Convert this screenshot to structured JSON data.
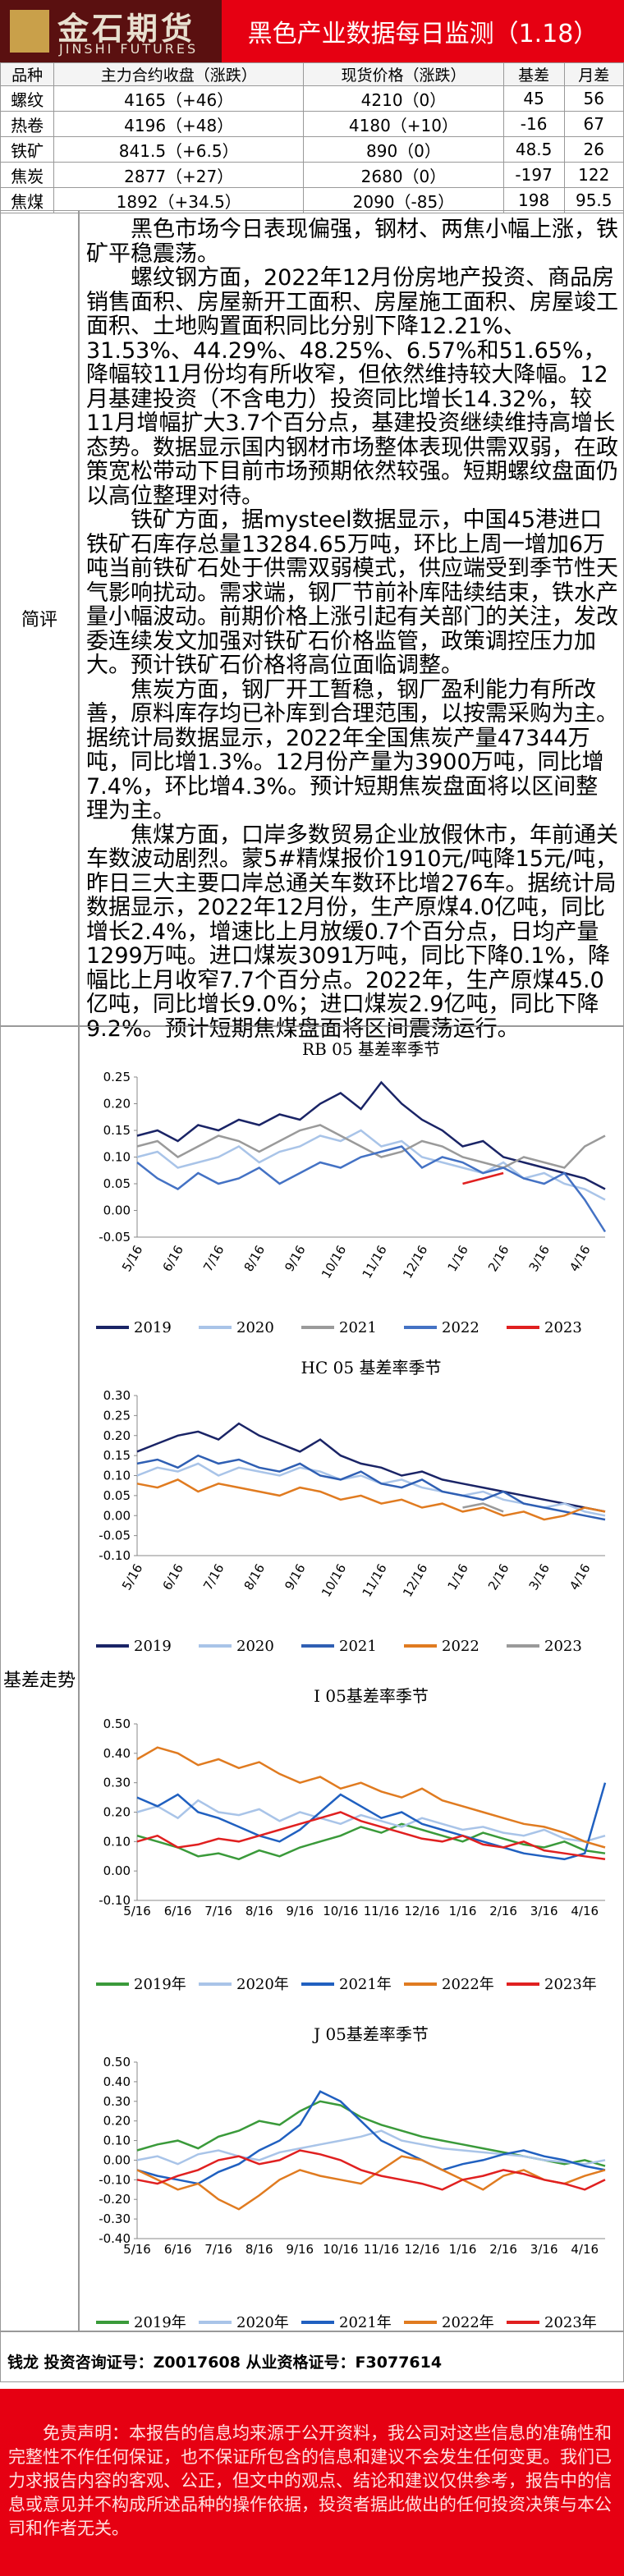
{
  "header": {
    "logo_cn": "金石期货",
    "logo_en": "JINSHI FUTURES",
    "title": "黑色产业数据每日监测（1.18）"
  },
  "table": {
    "columns": [
      "品种",
      "主力合约收盘（涨跌）",
      "现货价格（涨跌）",
      "基差",
      "月差"
    ],
    "rows": [
      [
        "螺纹",
        "4165（+46）",
        "4210（0）",
        "45",
        "56"
      ],
      [
        "热卷",
        "4196（+48）",
        "4180（+10）",
        "-16",
        "67"
      ],
      [
        "铁矿",
        "841.5（+6.5）",
        "890（0）",
        "48.5",
        "26"
      ],
      [
        "焦炭",
        "2877（+27）",
        "2680（0）",
        "-197",
        "122"
      ],
      [
        "焦煤",
        "1892（+34.5）",
        "2090（-85）",
        "198",
        "95.5"
      ]
    ]
  },
  "review": {
    "label": "简评",
    "paragraphs": [
      "黑色市场今日表现偏强，钢材、两焦小幅上涨，铁矿平稳震荡。",
      "螺纹钢方面，2022年12月份房地产投资、商品房销售面积、房屋新开工面积、房屋施工面积、房屋竣工面积、土地购置面积同比分别下降12.21%、31.53%、44.29%、48.25%、6.57%和51.65%，降幅较11月份均有所收窄，但依然维持较大降幅。12月基建投资（不含电力）投资同比增长14.32%，较11月增幅扩大3.7个百分点，基建投资继续维持高增长态势。数据显示国内钢材市场整体表现供需双弱，在政策宽松带动下目前市场预期依然较强。短期螺纹盘面仍以高位整理对待。",
      "铁矿方面，据mysteel数据显示，中国45港进口铁矿石库存总量13284.65万吨，环比上周一增加6万吨当前铁矿石处于供需双弱模式，供应端受到季节性天气影响扰动。需求端，钢厂节前补库陆续结束，铁水产量小幅波动。前期价格上涨引起有关部门的关注，发改委连续发文加强对铁矿石价格监管，政策调控压力加大。预计铁矿石价格将高位面临调整。",
      "焦炭方面，钢厂开工暂稳，钢厂盈利能力有所改善，原料库存均已补库到合理范围，以按需采购为主。据统计局数据显示，2022年全国焦炭产量47344万吨，同比增1.3%。12月份产量为3900万吨，同比增7.4%，环比增4.3%。预计短期焦炭盘面将以区间整理为主。",
      "焦煤方面，口岸多数贸易企业放假休市，年前通关车数波动剧烈。蒙5#精煤报价1910元/吨降15元/吨，昨日三大主要口岸总通关车数环比增276车。据统计局数据显示，2022年12月份，生产原煤4.0亿吨，同比增长2.4%，增速比上月放缓0.7个百分点，日均产量1299万吨。进口煤炭3091万吨，同比下降0.1%，降幅比上月收窄7.7个百分点。2022年，生产原煤45.0亿吨，同比增长9.0%；进口煤炭2.9亿吨，同比下降9.2%。预计短期焦煤盘面将区间震荡运行。"
    ]
  },
  "basis": {
    "label": "基差走势"
  },
  "chart_data": [
    {
      "type": "line",
      "title": "RB 05 基差率季节",
      "categories": [
        "5/16",
        null,
        "6/16",
        null,
        "7/16",
        null,
        "8/16",
        null,
        "9/16",
        null,
        "10/16",
        null,
        "11/16",
        null,
        "12/16",
        null,
        "1/16",
        null,
        "2/16",
        null,
        "3/16",
        null,
        "4/16",
        null
      ],
      "ylim": [
        -0.05,
        0.25
      ],
      "yticks": [
        {
          "value": -0.05,
          "label": "-0.05"
        },
        {
          "value": 0,
          "label": "0.00"
        },
        {
          "value": 0.05,
          "label": "0.05"
        },
        {
          "value": 0.1,
          "label": "0.10"
        },
        {
          "value": 0.15,
          "label": "0.15"
        },
        {
          "value": 0.2,
          "label": "0.20"
        },
        {
          "value": 0.25,
          "label": "0.25"
        }
      ],
      "series": [
        {
          "name": "2019",
          "color": "#1a2466",
          "values": [
            0.14,
            0.15,
            0.13,
            0.16,
            0.15,
            0.17,
            0.16,
            0.18,
            0.17,
            0.2,
            0.22,
            0.19,
            0.24,
            0.2,
            0.17,
            0.15,
            0.12,
            0.13,
            0.1,
            0.09,
            0.08,
            0.07,
            0.06,
            0.04
          ]
        },
        {
          "name": "2020",
          "color": "#a9c4e8",
          "values": [
            0.1,
            0.11,
            0.08,
            0.09,
            0.1,
            0.12,
            0.09,
            0.11,
            0.12,
            0.14,
            0.13,
            0.15,
            0.12,
            0.13,
            0.1,
            0.09,
            0.08,
            0.07,
            0.09,
            0.06,
            0.07,
            0.05,
            0.04,
            0.02
          ]
        },
        {
          "name": "2021",
          "color": "#9a9a9a",
          "values": [
            0.12,
            0.13,
            0.1,
            0.12,
            0.14,
            0.13,
            0.11,
            0.13,
            0.15,
            0.16,
            0.14,
            0.12,
            0.1,
            0.11,
            0.13,
            0.12,
            0.1,
            0.09,
            0.08,
            0.1,
            0.09,
            0.08,
            0.12,
            0.14
          ]
        },
        {
          "name": "2022",
          "color": "#4472c4",
          "values": [
            0.09,
            0.06,
            0.04,
            0.07,
            0.05,
            0.06,
            0.08,
            0.05,
            0.07,
            0.09,
            0.08,
            0.1,
            0.11,
            0.12,
            0.08,
            0.1,
            0.09,
            0.07,
            0.08,
            0.06,
            0.05,
            0.07,
            0.02,
            -0.04
          ]
        },
        {
          "name": "2023",
          "color": "#e02020",
          "values": [
            null,
            null,
            null,
            null,
            null,
            null,
            null,
            null,
            null,
            null,
            null,
            null,
            null,
            null,
            null,
            null,
            0.05,
            0.06,
            0.07,
            null,
            null,
            null,
            null,
            null
          ]
        }
      ]
    },
    {
      "type": "line",
      "title": "HC 05 基差率季节",
      "categories": [
        "5/16",
        null,
        "6/16",
        null,
        "7/16",
        null,
        "8/16",
        null,
        "9/16",
        null,
        "10/16",
        null,
        "11/16",
        null,
        "12/16",
        null,
        "1/16",
        null,
        "2/16",
        null,
        "3/16",
        null,
        "4/16",
        null
      ],
      "ylim": [
        -0.1,
        0.3
      ],
      "yticks": [
        {
          "value": -0.1,
          "label": "-0.10"
        },
        {
          "value": -0.05,
          "label": "-0.05"
        },
        {
          "value": 0,
          "label": "0.00"
        },
        {
          "value": 0.05,
          "label": "0.05"
        },
        {
          "value": 0.1,
          "label": "0.10"
        },
        {
          "value": 0.15,
          "label": "0.15"
        },
        {
          "value": 0.2,
          "label": "0.20"
        },
        {
          "value": 0.25,
          "label": "0.25"
        },
        {
          "value": 0.3,
          "label": "0.30"
        }
      ],
      "series": [
        {
          "name": "2019",
          "color": "#1a2466",
          "values": [
            0.16,
            0.18,
            0.2,
            0.21,
            0.19,
            0.23,
            0.2,
            0.18,
            0.16,
            0.19,
            0.15,
            0.13,
            0.12,
            0.1,
            0.11,
            0.09,
            0.08,
            0.07,
            0.06,
            0.05,
            0.04,
            0.03,
            0.02,
            0.01
          ]
        },
        {
          "name": "2020",
          "color": "#a9c4e8",
          "values": [
            0.1,
            0.12,
            0.11,
            0.13,
            0.1,
            0.12,
            0.11,
            0.1,
            0.12,
            0.11,
            0.09,
            0.1,
            0.08,
            0.09,
            0.07,
            0.06,
            0.05,
            0.06,
            0.04,
            0.03,
            0.02,
            0.03,
            0.01,
            0
          ]
        },
        {
          "name": "2021",
          "color": "#2f5fb3",
          "values": [
            0.13,
            0.14,
            0.12,
            0.15,
            0.13,
            0.14,
            0.12,
            0.11,
            0.13,
            0.1,
            0.09,
            0.11,
            0.08,
            0.07,
            0.09,
            0.06,
            0.05,
            0.04,
            0.06,
            0.03,
            0.02,
            0.01,
            0,
            -0.01
          ]
        },
        {
          "name": "2022",
          "color": "#e07b20",
          "values": [
            0.08,
            0.07,
            0.09,
            0.06,
            0.08,
            0.07,
            0.06,
            0.05,
            0.07,
            0.06,
            0.04,
            0.05,
            0.03,
            0.04,
            0.02,
            0.03,
            0.01,
            0.02,
            0,
            0.01,
            -0.01,
            0,
            0.02,
            0.01
          ]
        },
        {
          "name": "2023",
          "color": "#9a9a9a",
          "values": [
            null,
            null,
            null,
            null,
            null,
            null,
            null,
            null,
            null,
            null,
            null,
            null,
            null,
            null,
            null,
            null,
            0.02,
            0.03,
            0.01,
            null,
            null,
            null,
            null,
            null
          ]
        }
      ]
    },
    {
      "type": "line",
      "title": "I 05基差率季节",
      "categories": [
        "5/16",
        null,
        "6/16",
        null,
        "7/16",
        null,
        "8/16",
        null,
        "9/16",
        null,
        "10/16",
        null,
        "11/16",
        null,
        "12/16",
        null,
        "1/16",
        null,
        "2/16",
        null,
        "3/16",
        null,
        "4/16",
        null
      ],
      "ylim": [
        -0.1,
        0.5
      ],
      "yticks": [
        {
          "value": -0.1,
          "label": "-0.10"
        },
        {
          "value": 0,
          "label": "0.00"
        },
        {
          "value": 0.1,
          "label": "0.10"
        },
        {
          "value": 0.2,
          "label": "0.20"
        },
        {
          "value": 0.3,
          "label": "0.30"
        },
        {
          "value": 0.4,
          "label": "0.40"
        },
        {
          "value": 0.5,
          "label": "0.50"
        }
      ],
      "series": [
        {
          "name": "2019年",
          "color": "#3a9a3a",
          "values": [
            0.12,
            0.1,
            0.08,
            0.05,
            0.06,
            0.04,
            0.07,
            0.05,
            0.08,
            0.1,
            0.12,
            0.15,
            0.13,
            0.16,
            0.14,
            0.12,
            0.1,
            0.13,
            0.11,
            0.09,
            0.08,
            0.1,
            0.07,
            0.06
          ]
        },
        {
          "name": "2020年",
          "color": "#a9c4e8",
          "values": [
            0.2,
            0.22,
            0.18,
            0.24,
            0.2,
            0.19,
            0.21,
            0.17,
            0.2,
            0.18,
            0.16,
            0.19,
            0.17,
            0.15,
            0.18,
            0.16,
            0.14,
            0.15,
            0.13,
            0.12,
            0.14,
            0.11,
            0.1,
            0.12
          ]
        },
        {
          "name": "2021年",
          "color": "#2060c0",
          "values": [
            0.25,
            0.22,
            0.26,
            0.2,
            0.18,
            0.15,
            0.12,
            0.1,
            0.14,
            0.2,
            0.26,
            0.22,
            0.18,
            0.2,
            0.16,
            0.14,
            0.12,
            0.1,
            0.08,
            0.06,
            0.05,
            0.04,
            0.06,
            0.3
          ]
        },
        {
          "name": "2022年",
          "color": "#e07b20",
          "values": [
            0.38,
            0.42,
            0.4,
            0.36,
            0.38,
            0.35,
            0.37,
            0.33,
            0.3,
            0.32,
            0.28,
            0.3,
            0.27,
            0.25,
            0.28,
            0.24,
            0.22,
            0.2,
            0.18,
            0.16,
            0.15,
            0.13,
            0.1,
            0.08
          ]
        },
        {
          "name": "2023年",
          "color": "#e02020",
          "values": [
            0.1,
            0.12,
            0.08,
            0.09,
            0.11,
            0.1,
            0.12,
            0.14,
            0.16,
            0.18,
            0.2,
            0.17,
            0.15,
            0.13,
            0.11,
            0.1,
            0.12,
            0.09,
            0.08,
            0.1,
            0.07,
            0.06,
            0.05,
            0.04
          ]
        }
      ]
    },
    {
      "type": "line",
      "title": "J 05基差率季节",
      "categories": [
        "5/16",
        null,
        "6/16",
        null,
        "7/16",
        null,
        "8/16",
        null,
        "9/16",
        null,
        "10/16",
        null,
        "11/16",
        null,
        "12/16",
        null,
        "1/16",
        null,
        "2/16",
        null,
        "3/16",
        null,
        "4/16",
        null
      ],
      "ylim": [
        -0.4,
        0.5
      ],
      "yticks": [
        {
          "value": -0.4,
          "label": "-0.40"
        },
        {
          "value": -0.3,
          "label": "-0.30"
        },
        {
          "value": -0.2,
          "label": "-0.20"
        },
        {
          "value": -0.1,
          "label": "-0.10"
        },
        {
          "value": 0,
          "label": "0.00"
        },
        {
          "value": 0.1,
          "label": "0.10"
        },
        {
          "value": 0.2,
          "label": "0.20"
        },
        {
          "value": 0.3,
          "label": "0.30"
        },
        {
          "value": 0.4,
          "label": "0.40"
        },
        {
          "value": 0.5,
          "label": "0.50"
        }
      ],
      "series": [
        {
          "name": "2019年",
          "color": "#3a9a3a",
          "values": [
            0.05,
            0.08,
            0.1,
            0.06,
            0.12,
            0.15,
            0.2,
            0.18,
            0.25,
            0.3,
            0.28,
            0.22,
            0.18,
            0.15,
            0.12,
            0.1,
            0.08,
            0.06,
            0.04,
            0.02,
            0,
            -0.02,
            0,
            -0.03
          ]
        },
        {
          "name": "2020年",
          "color": "#a9c4e8",
          "values": [
            0,
            0.02,
            -0.02,
            0.03,
            0.05,
            0.02,
            0,
            0.04,
            0.06,
            0.08,
            0.1,
            0.12,
            0.15,
            0.1,
            0.08,
            0.06,
            0.05,
            0.04,
            0.03,
            0.02,
            0,
            -0.01,
            -0.02,
            0
          ]
        },
        {
          "name": "2021年",
          "color": "#2060c0",
          "values": [
            -0.05,
            -0.08,
            -0.1,
            -0.12,
            -0.06,
            -0.02,
            0.05,
            0.1,
            0.18,
            0.35,
            0.3,
            0.2,
            0.1,
            0.05,
            0,
            -0.05,
            -0.02,
            0,
            0.03,
            0.05,
            0.02,
            0,
            -0.03,
            -0.05
          ]
        },
        {
          "name": "2022年",
          "color": "#e07b20",
          "values": [
            -0.05,
            -0.1,
            -0.15,
            -0.12,
            -0.2,
            -0.25,
            -0.18,
            -0.1,
            -0.05,
            -0.08,
            -0.1,
            -0.12,
            -0.05,
            0.02,
            0,
            -0.05,
            -0.1,
            -0.15,
            -0.08,
            -0.05,
            -0.1,
            -0.12,
            -0.08,
            -0.05
          ]
        },
        {
          "name": "2023年",
          "color": "#e02020",
          "values": [
            -0.1,
            -0.12,
            -0.08,
            -0.05,
            0,
            0.02,
            -0.02,
            0,
            0.05,
            0.03,
            0,
            -0.05,
            -0.08,
            -0.1,
            -0.12,
            -0.15,
            -0.1,
            -0.08,
            -0.05,
            -0.07,
            -0.1,
            -0.12,
            -0.15,
            -0.1
          ]
        }
      ]
    }
  ],
  "footer": {
    "analyst": "钱龙 投资咨询证号：Z0017608 从业资格证号：F3077614"
  },
  "disclaimer": "免责声明：本报告的信息均来源于公开资料，我公司对这些信息的准确性和完整性不作任何保证，也不保证所包含的信息和建议不会发生任何变更。我们已力求报告内容的客观、公正，但文中的观点、结论和建议仅供参考，报告中的信息或意见并不构成所述品种的操作依据，投资者据此做出的任何投资决策与本公司和作者无关。"
}
